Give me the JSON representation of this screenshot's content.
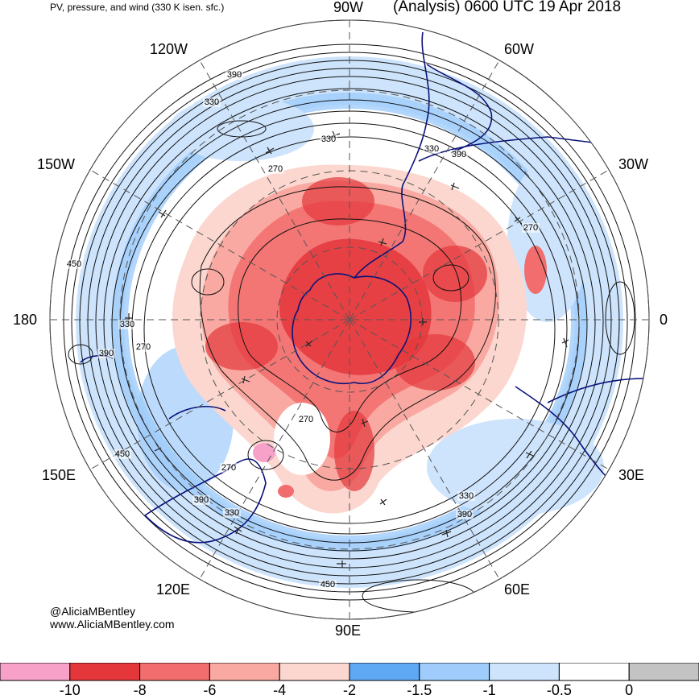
{
  "header": {
    "left_text": "PV, pressure, and wind (330 K isen. sfc.)",
    "right_text": "(Analysis) 0600 UTC 19 Apr 2018"
  },
  "map": {
    "projection": "south-polar-stereographic",
    "longitude_labels": {
      "w90": "90W",
      "w60": "60W",
      "w30": "30W",
      "zero": "0",
      "e30": "30E",
      "e60": "60E",
      "e90": "90E",
      "e120": "120E",
      "e150": "150E",
      "dateline": "180",
      "w150": "150W",
      "w120": "120W"
    },
    "contour_labels": [
      "390",
      "330",
      "330",
      "270",
      "450",
      "330",
      "390",
      "270",
      "270",
      "450",
      "270",
      "390",
      "330",
      "330",
      "390",
      "270",
      "450",
      "330",
      "390"
    ]
  },
  "credits": {
    "handle": "@AliciaMBentley",
    "website": "www.AliciaMBentley.com"
  },
  "legend": {
    "colors": [
      "#f7a1c8",
      "#e4373c",
      "#f26d6d",
      "#f9a9a1",
      "#fbd7cf",
      "#5ea8f4",
      "#9fccfb",
      "#cde4fc",
      "#ffffff",
      "#c3c3c3"
    ],
    "tick_labels": [
      "-10",
      "-8",
      "-6",
      "-4",
      "-2",
      "-1.5",
      "-1",
      "-0.5",
      "0"
    ]
  }
}
